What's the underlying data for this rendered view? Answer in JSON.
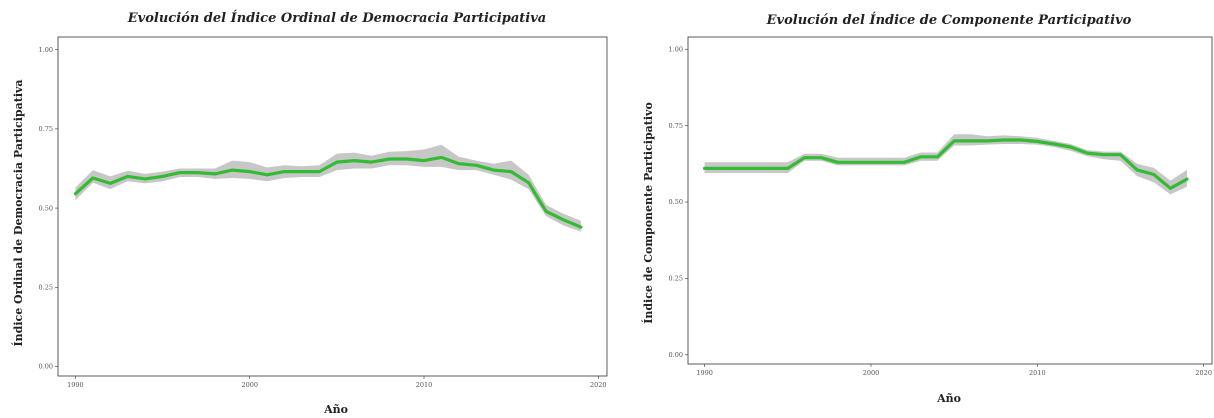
{
  "chart_data": [
    {
      "type": "line",
      "title": "Evolución del Índice Ordinal de Democracia Participativa",
      "xlabel": "Año",
      "ylabel": "Índice Ordinal de Democracia Participativa",
      "xlim": [
        1989,
        2020.5
      ],
      "ylim": [
        -0.03,
        1.04
      ],
      "x_ticks": [
        1990,
        2000,
        2010,
        2020
      ],
      "y_ticks": [
        0.0,
        0.25,
        0.5,
        0.75,
        1.0
      ],
      "x_tick_labels": [
        "1990",
        "2000",
        "2010",
        "2020"
      ],
      "y_tick_labels": [
        "0.00",
        "0.25",
        "0.50",
        "0.75",
        "1.00"
      ],
      "grid": false,
      "series": [
        {
          "x": [
            1990,
            1991,
            1992,
            1993,
            1994,
            1995,
            1996,
            1997,
            1998,
            1999,
            2000,
            2001,
            2002,
            2003,
            2004,
            2005,
            2006,
            2007,
            2008,
            2009,
            2010,
            2011,
            2012,
            2013,
            2014,
            2015,
            2016,
            2017,
            2018,
            2019
          ],
          "values": [
            0.545,
            0.595,
            0.578,
            0.6,
            0.592,
            0.6,
            0.612,
            0.612,
            0.608,
            0.62,
            0.615,
            0.605,
            0.615,
            0.615,
            0.615,
            0.645,
            0.65,
            0.645,
            0.655,
            0.655,
            0.65,
            0.66,
            0.64,
            0.635,
            0.62,
            0.615,
            0.58,
            0.49,
            0.463,
            0.44
          ],
          "lower": [
            0.525,
            0.58,
            0.56,
            0.585,
            0.578,
            0.585,
            0.598,
            0.598,
            0.592,
            0.595,
            0.592,
            0.585,
            0.595,
            0.598,
            0.598,
            0.62,
            0.625,
            0.625,
            0.635,
            0.635,
            0.63,
            0.63,
            0.62,
            0.62,
            0.605,
            0.59,
            0.56,
            0.475,
            0.445,
            0.425
          ],
          "upper": [
            0.565,
            0.62,
            0.6,
            0.618,
            0.608,
            0.615,
            0.625,
            0.625,
            0.625,
            0.65,
            0.645,
            0.628,
            0.635,
            0.632,
            0.635,
            0.672,
            0.675,
            0.665,
            0.678,
            0.68,
            0.685,
            0.7,
            0.662,
            0.65,
            0.64,
            0.65,
            0.605,
            0.51,
            0.482,
            0.46
          ]
        }
      ]
    },
    {
      "type": "line",
      "title": "Evolución del Índice de Componente Participativo",
      "xlabel": "Año",
      "ylabel": "Índice de Componente Participativo",
      "xlim": [
        1989,
        2020.5
      ],
      "ylim": [
        -0.03,
        1.04
      ],
      "x_ticks": [
        1990,
        2000,
        2010,
        2020
      ],
      "y_ticks": [
        0.0,
        0.25,
        0.5,
        0.75,
        1.0
      ],
      "x_tick_labels": [
        "1990",
        "2000",
        "2010",
        "2020"
      ],
      "y_tick_labels": [
        "0.00",
        "0.25",
        "0.50",
        "0.75",
        "1.00"
      ],
      "grid": false,
      "series": [
        {
          "x": [
            1990,
            1991,
            1992,
            1993,
            1994,
            1995,
            1996,
            1997,
            1998,
            1999,
            2000,
            2001,
            2002,
            2003,
            2004,
            2005,
            2006,
            2007,
            2008,
            2009,
            2010,
            2011,
            2012,
            2013,
            2014,
            2015,
            2016,
            2017,
            2018,
            2019
          ],
          "values": [
            0.61,
            0.61,
            0.61,
            0.61,
            0.61,
            0.61,
            0.645,
            0.645,
            0.63,
            0.63,
            0.63,
            0.63,
            0.63,
            0.648,
            0.648,
            0.7,
            0.7,
            0.7,
            0.703,
            0.703,
            0.698,
            0.69,
            0.68,
            0.66,
            0.655,
            0.655,
            0.605,
            0.59,
            0.545,
            0.575
          ],
          "lower": [
            0.595,
            0.595,
            0.595,
            0.595,
            0.595,
            0.595,
            0.635,
            0.635,
            0.62,
            0.62,
            0.62,
            0.62,
            0.62,
            0.635,
            0.635,
            0.685,
            0.685,
            0.688,
            0.69,
            0.69,
            0.688,
            0.68,
            0.668,
            0.65,
            0.64,
            0.635,
            0.585,
            0.565,
            0.525,
            0.55
          ],
          "upper": [
            0.63,
            0.63,
            0.63,
            0.63,
            0.63,
            0.63,
            0.658,
            0.658,
            0.645,
            0.645,
            0.645,
            0.645,
            0.645,
            0.662,
            0.662,
            0.722,
            0.722,
            0.715,
            0.718,
            0.715,
            0.71,
            0.7,
            0.69,
            0.67,
            0.665,
            0.665,
            0.625,
            0.612,
            0.57,
            0.605
          ]
        }
      ]
    }
  ]
}
